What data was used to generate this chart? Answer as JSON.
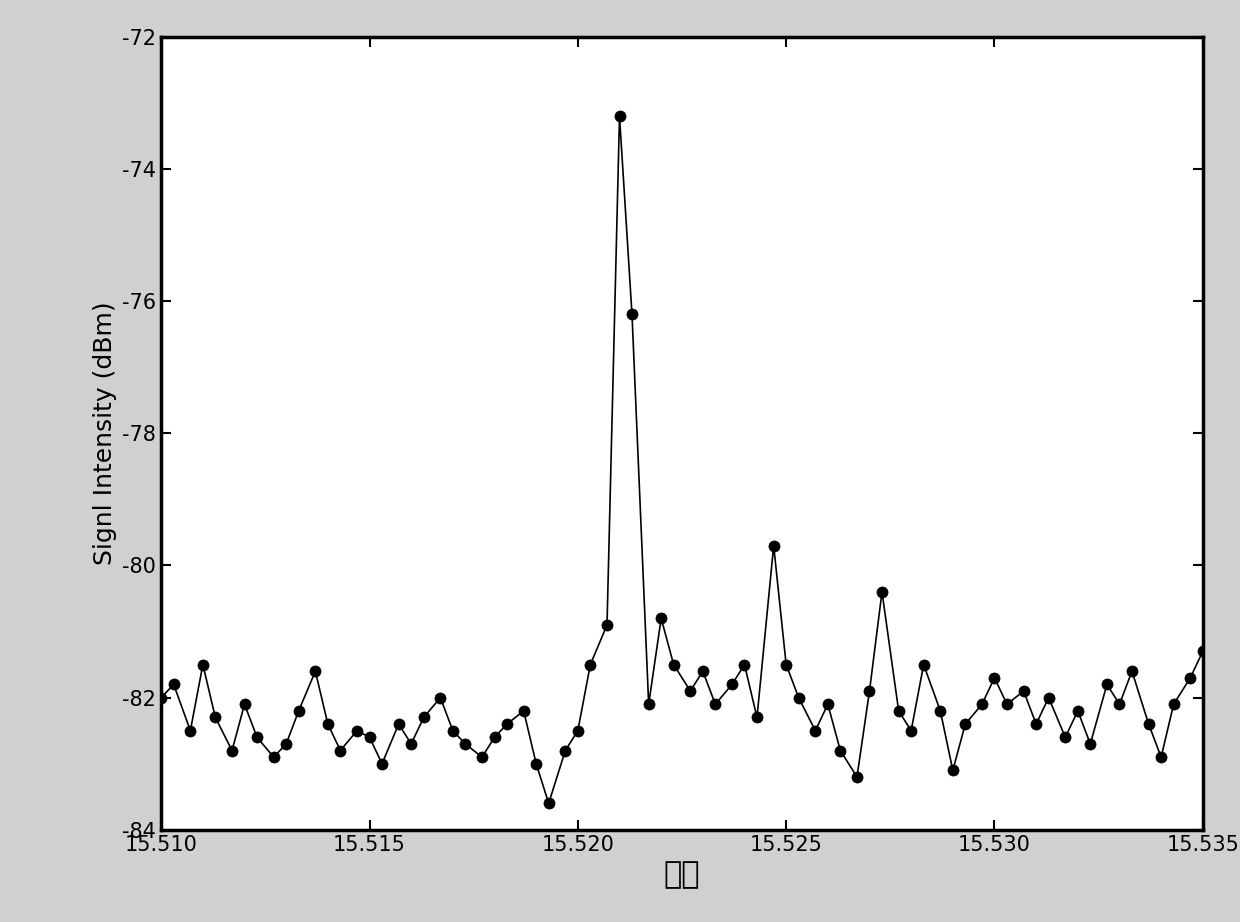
{
  "x_values": [
    15.51,
    15.5103,
    15.5107,
    15.511,
    15.5113,
    15.5117,
    15.512,
    15.5123,
    15.5127,
    15.513,
    15.5133,
    15.5137,
    15.514,
    15.5143,
    15.5147,
    15.515,
    15.5153,
    15.5157,
    15.516,
    15.5163,
    15.5167,
    15.517,
    15.5173,
    15.5177,
    15.518,
    15.5183,
    15.5187,
    15.519,
    15.5193,
    15.5197,
    15.52,
    15.5203,
    15.5207,
    15.521,
    15.5213,
    15.5217,
    15.522,
    15.5223,
    15.5227,
    15.523,
    15.5233,
    15.5237,
    15.524,
    15.5243,
    15.5247,
    15.525,
    15.5253,
    15.5257,
    15.526,
    15.5263,
    15.5267,
    15.527,
    15.5273,
    15.5277,
    15.528,
    15.5283,
    15.5287,
    15.529,
    15.5293,
    15.5297,
    15.53,
    15.5303,
    15.5307,
    15.531,
    15.5313,
    15.5317,
    15.532,
    15.5323,
    15.5327,
    15.533,
    15.5333,
    15.5337,
    15.534,
    15.5343,
    15.5347,
    15.535
  ],
  "y_values": [
    -82.0,
    -81.8,
    -82.5,
    -81.5,
    -82.3,
    -82.8,
    -82.1,
    -82.6,
    -82.9,
    -82.7,
    -82.2,
    -81.6,
    -82.4,
    -82.8,
    -82.5,
    -82.6,
    -83.0,
    -82.4,
    -82.7,
    -82.3,
    -82.0,
    -82.5,
    -82.7,
    -82.9,
    -82.6,
    -82.4,
    -82.2,
    -83.0,
    -83.6,
    -82.8,
    -82.5,
    -81.5,
    -80.9,
    -73.2,
    -76.2,
    -82.1,
    -80.8,
    -81.5,
    -81.9,
    -81.6,
    -82.1,
    -81.8,
    -81.5,
    -82.3,
    -79.7,
    -81.5,
    -82.0,
    -82.5,
    -82.1,
    -82.8,
    -83.2,
    -81.9,
    -80.4,
    -82.2,
    -82.5,
    -81.5,
    -82.2,
    -83.1,
    -82.4,
    -82.1,
    -81.7,
    -82.1,
    -81.9,
    -82.4,
    -82.0,
    -82.6,
    -82.2,
    -82.7,
    -81.8,
    -82.1,
    -81.6,
    -82.4,
    -82.9,
    -82.1,
    -81.7,
    -81.3
  ],
  "xlim": [
    15.51,
    15.535
  ],
  "ylim": [
    -84,
    -72
  ],
  "xticks": [
    15.51,
    15.515,
    15.52,
    15.525,
    15.53,
    15.535
  ],
  "yticks": [
    -84,
    -82,
    -80,
    -78,
    -76,
    -74,
    -72
  ],
  "xlabel": "频率",
  "ylabel": "Signl Intensity (dBm)",
  "line_color": "#000000",
  "marker_color": "#000000",
  "marker_size": 8,
  "line_width": 1.2,
  "background_color": "#ffffff",
  "outer_bg_color": "#d0d0d0",
  "font_size_ylabel": 18,
  "font_size_xlabel": 22,
  "font_size_ticks": 15
}
